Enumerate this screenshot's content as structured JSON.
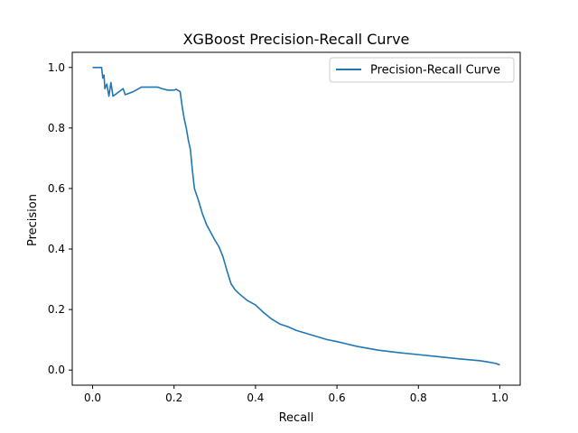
{
  "chart_data": {
    "type": "line",
    "title": "XGBoost Precision-Recall Curve",
    "xlabel": "Recall",
    "ylabel": "Precision",
    "xlim": [
      -0.05,
      1.05
    ],
    "ylim": [
      -0.05,
      1.05
    ],
    "x_ticks": [
      0.0,
      0.2,
      0.4,
      0.6,
      0.8,
      1.0
    ],
    "y_ticks": [
      0.0,
      0.2,
      0.4,
      0.6,
      0.8,
      1.0
    ],
    "x_tick_labels": [
      "0.0",
      "0.2",
      "0.4",
      "0.6",
      "0.8",
      "1.0"
    ],
    "y_tick_labels": [
      "0.0",
      "0.2",
      "0.4",
      "0.6",
      "0.8",
      "1.0"
    ],
    "grid": false,
    "legend_position": "upper right",
    "colors": {
      "line": "#1f77b4"
    },
    "series": [
      {
        "name": "Precision-Recall Curve",
        "points": [
          [
            1.0,
            0.017
          ],
          [
            0.99,
            0.022
          ],
          [
            0.97,
            0.027
          ],
          [
            0.95,
            0.031
          ],
          [
            0.9,
            0.037
          ],
          [
            0.85,
            0.044
          ],
          [
            0.8,
            0.051
          ],
          [
            0.75,
            0.058
          ],
          [
            0.7,
            0.066
          ],
          [
            0.65,
            0.078
          ],
          [
            0.6,
            0.094
          ],
          [
            0.575,
            0.101
          ],
          [
            0.55,
            0.111
          ],
          [
            0.5,
            0.131
          ],
          [
            0.48,
            0.143
          ],
          [
            0.46,
            0.152
          ],
          [
            0.44,
            0.168
          ],
          [
            0.42,
            0.19
          ],
          [
            0.4,
            0.215
          ],
          [
            0.38,
            0.23
          ],
          [
            0.36,
            0.252
          ],
          [
            0.35,
            0.265
          ],
          [
            0.34,
            0.285
          ],
          [
            0.33,
            0.328
          ],
          [
            0.32,
            0.375
          ],
          [
            0.31,
            0.408
          ],
          [
            0.3,
            0.43
          ],
          [
            0.29,
            0.455
          ],
          [
            0.28,
            0.48
          ],
          [
            0.27,
            0.515
          ],
          [
            0.26,
            0.56
          ],
          [
            0.25,
            0.6
          ],
          [
            0.245,
            0.66
          ],
          [
            0.24,
            0.73
          ],
          [
            0.235,
            0.76
          ],
          [
            0.23,
            0.8
          ],
          [
            0.225,
            0.83
          ],
          [
            0.22,
            0.87
          ],
          [
            0.215,
            0.92
          ],
          [
            0.205,
            0.928
          ],
          [
            0.2,
            0.925
          ],
          [
            0.185,
            0.925
          ],
          [
            0.17,
            0.93
          ],
          [
            0.16,
            0.935
          ],
          [
            0.14,
            0.935
          ],
          [
            0.12,
            0.935
          ],
          [
            0.1,
            0.92
          ],
          [
            0.08,
            0.91
          ],
          [
            0.075,
            0.93
          ],
          [
            0.065,
            0.92
          ],
          [
            0.05,
            0.905
          ],
          [
            0.045,
            0.95
          ],
          [
            0.04,
            0.905
          ],
          [
            0.035,
            0.945
          ],
          [
            0.03,
            0.93
          ],
          [
            0.028,
            0.975
          ],
          [
            0.025,
            0.965
          ],
          [
            0.022,
            1.0
          ],
          [
            0.0,
            1.0
          ]
        ]
      }
    ]
  }
}
